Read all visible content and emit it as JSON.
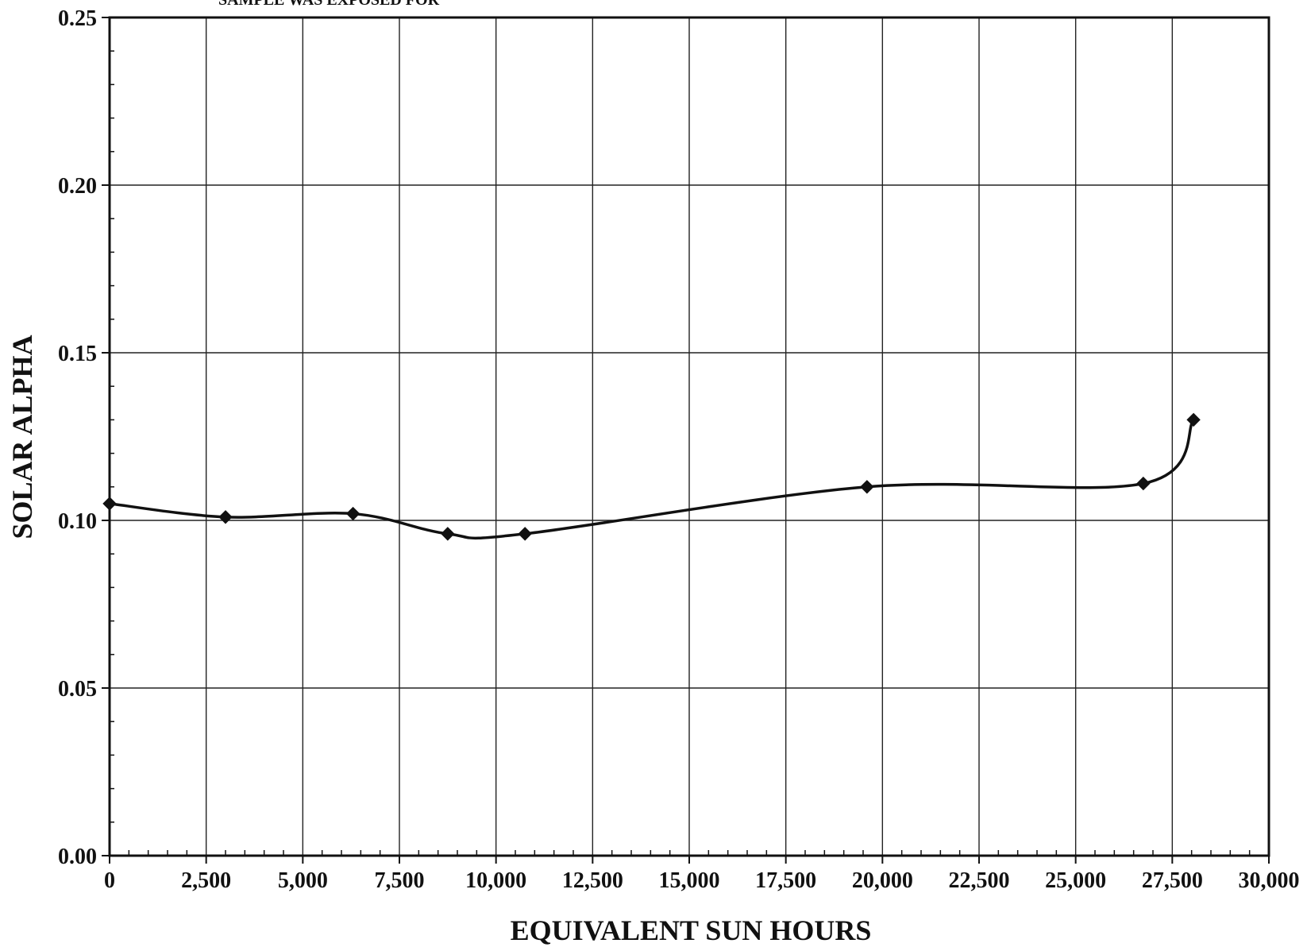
{
  "header_note": "SAMPLE WAS EXPOSED FOR",
  "chart_data": {
    "type": "line",
    "title": "",
    "xlabel": "EQUIVALENT SUN HOURS",
    "ylabel": "SOLAR ALPHA",
    "xlim": [
      0,
      30000
    ],
    "ylim": [
      0.0,
      0.25
    ],
    "x_ticks": [
      0,
      2500,
      5000,
      7500,
      10000,
      12500,
      15000,
      17500,
      20000,
      22500,
      25000,
      27500,
      30000
    ],
    "x_tick_labels": [
      "0",
      "2,500",
      "5,000",
      "7,500",
      "10,000",
      "12,500",
      "15,000",
      "17,500",
      "20,000",
      "22,500",
      "25,000",
      "27,500",
      "30,000"
    ],
    "y_ticks": [
      0.0,
      0.05,
      0.1,
      0.15,
      0.2,
      0.25
    ],
    "y_tick_labels": [
      "0.00",
      "0.05",
      "0.10",
      "0.15",
      "0.20",
      "0.25"
    ],
    "grid": true,
    "marker": "diamond",
    "line_style": "smooth",
    "line_color": "#111111",
    "series": [
      {
        "x": [
          0,
          3000,
          6300,
          8750,
          10750,
          19600,
          26750,
          28050
        ],
        "y": [
          0.105,
          0.101,
          0.102,
          0.096,
          0.096,
          0.11,
          0.111,
          0.13
        ]
      }
    ]
  }
}
